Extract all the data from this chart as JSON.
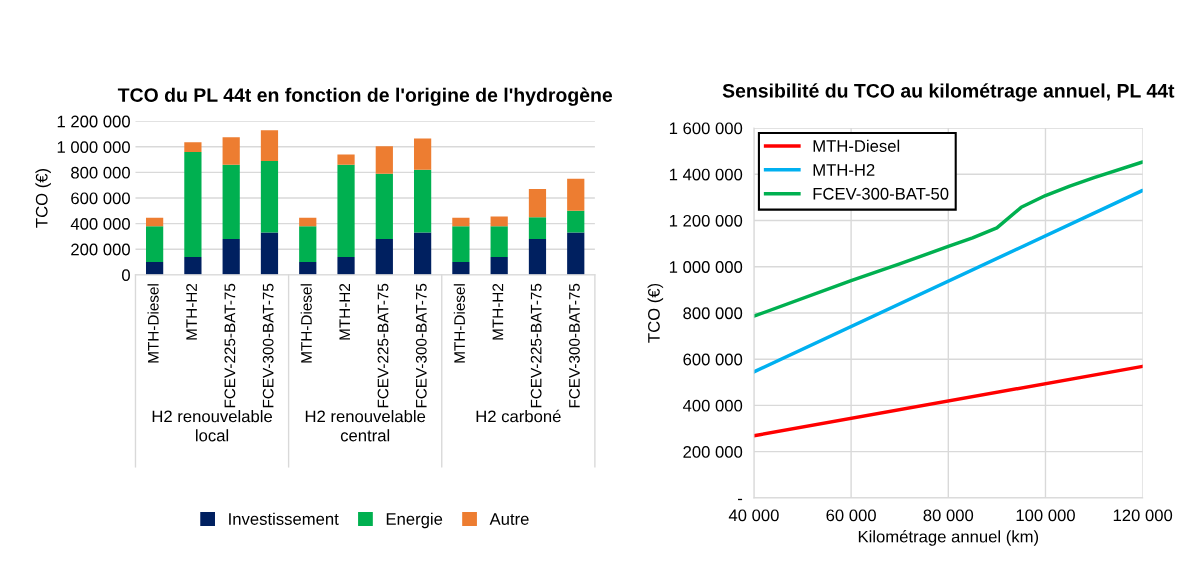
{
  "chart_data": [
    {
      "type": "bar",
      "stacked": true,
      "title": "TCO du PL 44t en fonction de l'origine de l'hydrogène",
      "ylabel": "TCO (€)",
      "categories": [
        "MTH-Diesel",
        "MTH-H2",
        "FCEV-225-BAT-75",
        "FCEV-300-BAT-75",
        "MTH-Diesel",
        "MTH-H2",
        "FCEV-225-BAT-75",
        "FCEV-300-BAT-75",
        "MTH-Diesel",
        "MTH-H2",
        "FCEV-225-BAT-75",
        "FCEV-300-BAT-75"
      ],
      "series": [
        {
          "name": "Investissement",
          "color": "#002060",
          "values": [
            100000,
            140000,
            280000,
            330000,
            100000,
            140000,
            280000,
            330000,
            100000,
            140000,
            280000,
            330000
          ]
        },
        {
          "name": "Energie",
          "color": "#00b050",
          "values": [
            280000,
            820000,
            580000,
            560000,
            280000,
            720000,
            510000,
            490000,
            280000,
            240000,
            170000,
            170000
          ]
        },
        {
          "name": "Autre",
          "color": "#ed7d31",
          "values": [
            65000,
            75000,
            215000,
            240000,
            65000,
            80000,
            215000,
            245000,
            65000,
            75000,
            220000,
            250000
          ]
        }
      ],
      "annotations": [
        "H2 renouvelable local",
        "H2 renouvelable central",
        "H2 carboné"
      ],
      "ylim": [
        0,
        1200000
      ],
      "yticks": [
        0,
        {
          "value": 200000,
          "label": "200 000"
        },
        {
          "value": 400000,
          "label": "400 000"
        },
        {
          "value": 600000,
          "label": "600 000"
        },
        {
          "value": 800000,
          "label": "800 000"
        },
        {
          "value": 1000000,
          "label": "1 000 000"
        },
        {
          "value": 1200000,
          "label": "1 200 000"
        }
      ],
      "grid": "y",
      "legend": "bottom"
    },
    {
      "type": "line",
      "title": "Sensibilité du TCO au kilométrage annuel, PL 44t",
      "xlabel": "Kilométrage annuel (km)",
      "ylabel": "TCO (€)",
      "series": [
        {
          "name": "MTH-Diesel",
          "color": "#ff0000",
          "x": [
            40000,
            120000
          ],
          "values": [
            269000,
            569000
          ]
        },
        {
          "name": "MTH-H2",
          "color": "#00b0f0",
          "x": [
            40000,
            120000
          ],
          "values": [
            545000,
            1330000
          ]
        },
        {
          "name": "FCEV-300-BAT-50",
          "color": "#00b050",
          "x": [
            40000,
            60000,
            70000,
            80000,
            85000,
            90000,
            95000,
            100000,
            105000,
            110000,
            120000
          ],
          "values": [
            786000,
            940000,
            1012000,
            1088000,
            1125000,
            1168000,
            1257000,
            1308000,
            1349000,
            1385000,
            1453000
          ]
        }
      ],
      "xlim": [
        40000,
        120000
      ],
      "xticks": [
        {
          "value": 40000,
          "label": "40 000"
        },
        {
          "value": 60000,
          "label": "60 000"
        },
        {
          "value": 80000,
          "label": "80 000"
        },
        {
          "value": 100000,
          "label": "100 000"
        },
        {
          "value": 120000,
          "label": "120 000"
        }
      ],
      "ylim": [
        0,
        1600000
      ],
      "yticks": [
        {
          "value": 0,
          "label": "-"
        },
        {
          "value": 200000,
          "label": "200 000"
        },
        {
          "value": 400000,
          "label": "400 000"
        },
        {
          "value": 600000,
          "label": "600 000"
        },
        {
          "value": 800000,
          "label": "800 000"
        },
        {
          "value": 1000000,
          "label": "1 000 000"
        },
        {
          "value": 1200000,
          "label": "1 200 000"
        },
        {
          "value": 1400000,
          "label": "1 400 000"
        },
        {
          "value": 1600000,
          "label": "1 600 000"
        }
      ],
      "grid": true,
      "legend": "top left",
      "line_style": "solid",
      "marker": "none"
    }
  ]
}
